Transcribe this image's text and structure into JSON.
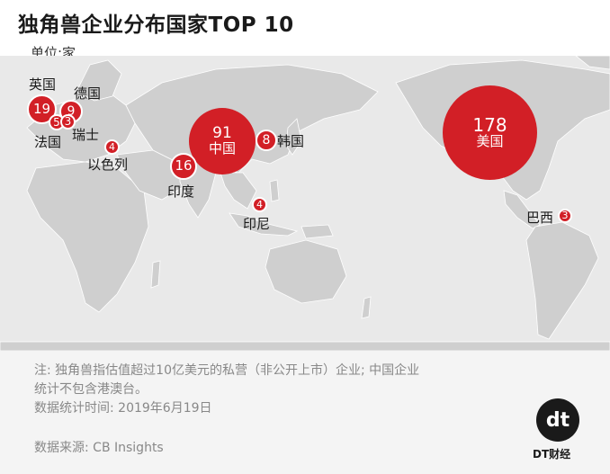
{
  "title": "独角兽企业分布国家TOP 10",
  "unit": "单位:家",
  "colors": {
    "bubble": "#d21f26",
    "land": "#cfcfcf",
    "ocean": "#e9e9e9"
  },
  "countries": [
    {
      "id": "usa",
      "label": "美国",
      "value": "178"
    },
    {
      "id": "china",
      "label": "中国",
      "value": "91"
    },
    {
      "id": "uk",
      "label": "英国",
      "value": "19"
    },
    {
      "id": "india",
      "label": "印度",
      "value": "16"
    },
    {
      "id": "germany",
      "label": "德国",
      "value": "9"
    },
    {
      "id": "korea",
      "label": "韩国",
      "value": "8"
    },
    {
      "id": "france",
      "label": "法国",
      "value": "5"
    },
    {
      "id": "israel",
      "label": "以色列",
      "value": "4"
    },
    {
      "id": "indonesia",
      "label": "印尼",
      "value": "4"
    },
    {
      "id": "switzerland",
      "label": "瑞士",
      "value": "3"
    },
    {
      "id": "brazil",
      "label": "巴西",
      "value": "3"
    }
  ],
  "notes": {
    "line1": "注: 独角兽指估值超过10亿美元的私营（非公开上市）企业; 中国企业",
    "line2": "统计不包含港澳台。",
    "line3": "数据统计时间: 2019年6月19日"
  },
  "source": "数据来源: CB Insights",
  "brand": {
    "mark": "dt",
    "name": "DT财经"
  }
}
